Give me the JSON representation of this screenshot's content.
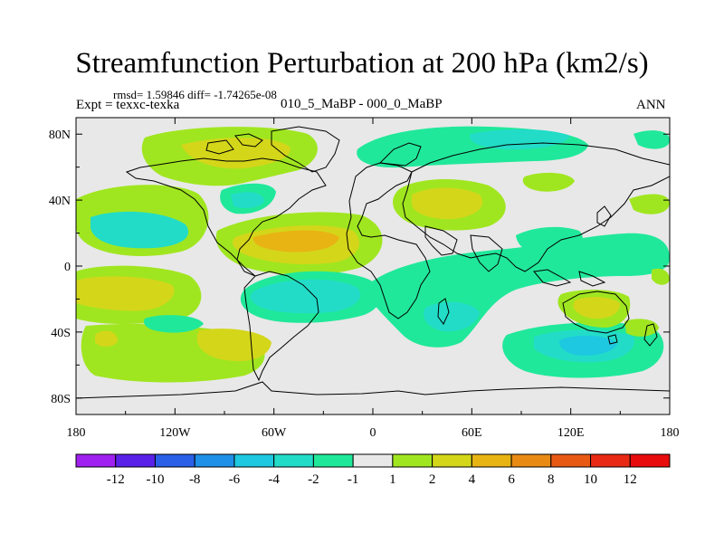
{
  "chart_data": {
    "type": "heatmap",
    "title": "Streamfunction Perturbation at 200 hPa (km2/s)",
    "stats_line": "rmsd= 1.59846 diff= -1.74265e-08",
    "left_label": "Expt = texxc-texka",
    "center_label": "010_5_MaBP - 000_0_MaBP",
    "right_label": "ANN",
    "x_ticks": [
      "180",
      "120W",
      "60W",
      "0",
      "60E",
      "120E",
      "180"
    ],
    "x_tick_values": [
      -180,
      -120,
      -60,
      0,
      60,
      120,
      180
    ],
    "y_ticks": [
      "80N",
      "40N",
      "0",
      "40S",
      "80S"
    ],
    "y_tick_values": [
      80,
      40,
      0,
      -40,
      -80
    ],
    "xlim": [
      -180,
      180
    ],
    "ylim": [
      -90,
      90
    ],
    "colorbar": {
      "labels": [
        "-12",
        "-10",
        "-8",
        "-6",
        "-4",
        "-2",
        "-1",
        "1",
        "2",
        "4",
        "6",
        "8",
        "10",
        "12"
      ],
      "colors": [
        "#a020f0",
        "#5a22e8",
        "#2a5fe8",
        "#1e90e8",
        "#1ec8e0",
        "#22dcc8",
        "#20e89a",
        "#e8e8e8",
        "#a0e620",
        "#d4d61a",
        "#e8b414",
        "#e88a14",
        "#e85a14",
        "#e82a14",
        "#e80c0c"
      ]
    },
    "features": [
      {
        "name": "positive-wave-north-atlantic",
        "lon": -45,
        "lat": 74,
        "level": "2 to 4"
      },
      {
        "name": "negative-wave-arctic",
        "lon": 95,
        "lat": 73,
        "level": "-1 to -2"
      },
      {
        "name": "positive-wave-central-asia",
        "lon": 50,
        "lat": 40,
        "level": "2 to 4"
      },
      {
        "name": "negative-wave-north-pacific",
        "lon": -155,
        "lat": 16,
        "level": "-2 to -4"
      },
      {
        "name": "positive-wave-tropical-atlantic",
        "lon": -40,
        "lat": 18,
        "level": "4 to 6"
      },
      {
        "name": "negative-wave-south-america",
        "lon": -50,
        "lat": -14,
        "level": "-2 to -4"
      },
      {
        "name": "positive-wave-south-pacific",
        "lon": -145,
        "lat": -18,
        "level": "2 to 4"
      },
      {
        "name": "negative-wave-southern-ocean",
        "lon": 135,
        "lat": -50,
        "level": "-2 to -4"
      },
      {
        "name": "positive-wave-australia",
        "lon": 140,
        "lat": -20,
        "level": "2 to 4"
      }
    ]
  }
}
